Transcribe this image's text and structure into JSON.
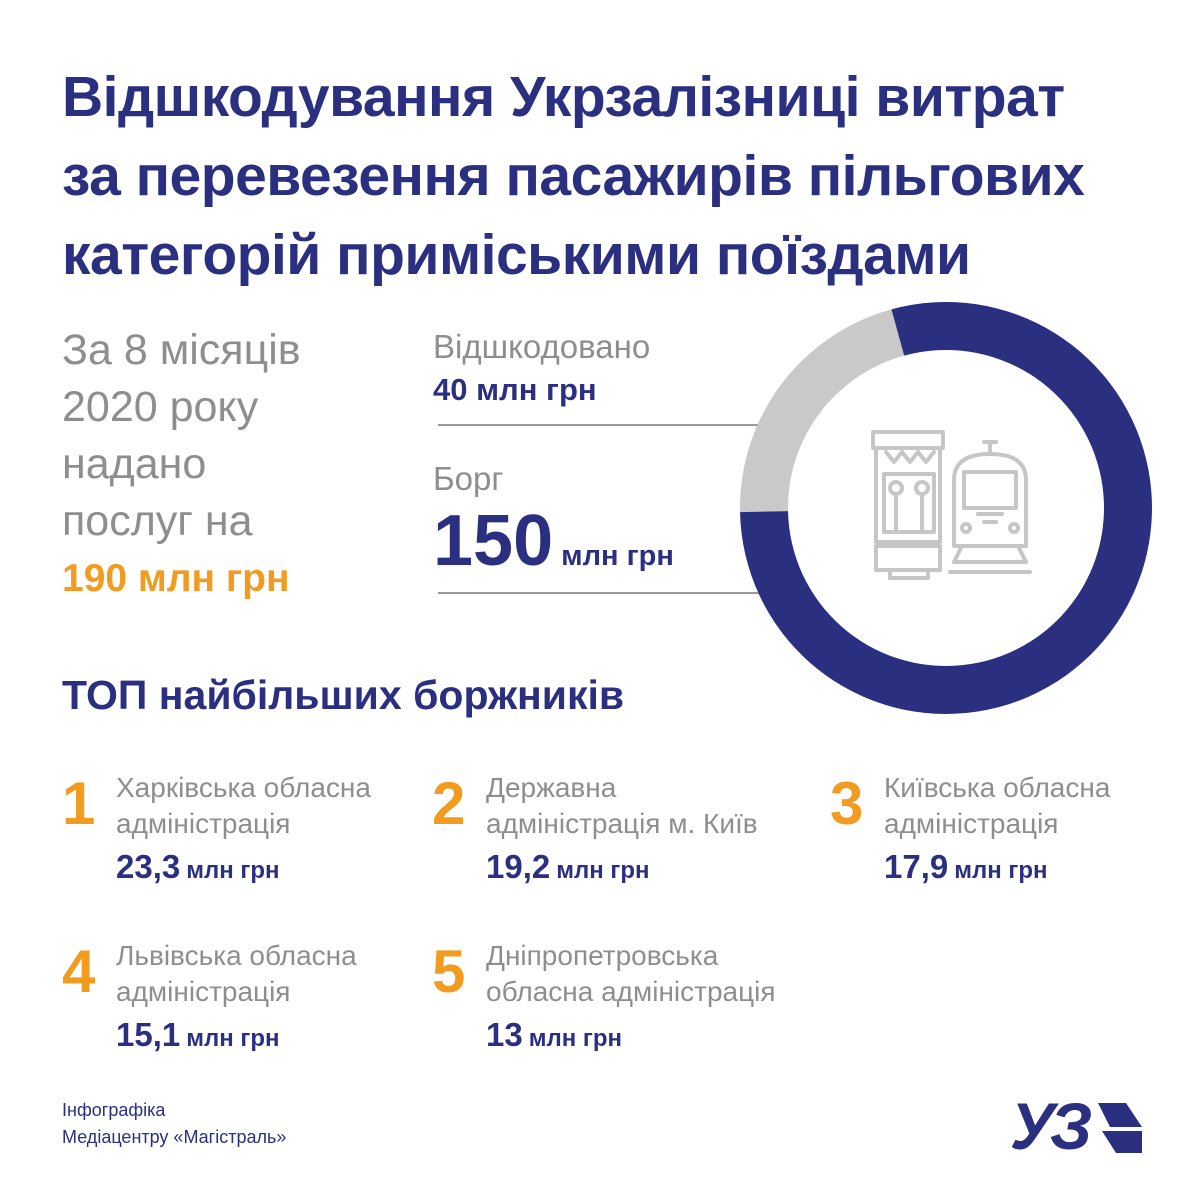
{
  "title": {
    "lines": [
      "Відшкодування Укрзалізниці витрат",
      "за перевезення пасажирів пільгових",
      "категорій приміськими поїздами"
    ]
  },
  "intro": {
    "lines": [
      "За 8 місяців",
      "2020 року",
      "надано",
      "послуг на"
    ],
    "amount": "190 млн грн"
  },
  "stats": {
    "compensated_label": "Відшкодовано",
    "compensated_value": "40 млн грн",
    "debt_label": "Борг",
    "debt_value": "150",
    "debt_unit": "млн грн"
  },
  "chart_data": {
    "type": "pie",
    "categories": [
      "Відшкодовано",
      "Борг"
    ],
    "values": [
      40,
      150
    ],
    "unit": "млн грн",
    "colors": [
      "#c9c9c9",
      "#2b2f7f"
    ],
    "style": "donut",
    "center_icon": "suburban-train-icon"
  },
  "top": {
    "title": "ТОП найбільших боржників",
    "debtors": [
      {
        "rank": "1",
        "name_lines": [
          "Харківська обласна",
          "адміністрація"
        ],
        "amount": "23,3",
        "unit": "млн грн"
      },
      {
        "rank": "2",
        "name_lines": [
          "Державна",
          "адміністрація м. Київ"
        ],
        "amount": "19,2",
        "unit": "млн грн"
      },
      {
        "rank": "3",
        "name_lines": [
          "Київська обласна",
          "адміністрація"
        ],
        "amount": "17,9",
        "unit": "млн грн"
      },
      {
        "rank": "4",
        "name_lines": [
          "Львівська обласна",
          "адміністрація"
        ],
        "amount": "15,1",
        "unit": "млн грн"
      },
      {
        "rank": "5",
        "name_lines": [
          "Дніпропетровська",
          "обласна адміністрація"
        ],
        "amount": "13",
        "unit": "млн грн"
      }
    ]
  },
  "credit": {
    "lines": [
      "Інфографіка",
      "Медіацентру «Магістраль»"
    ]
  },
  "logo": {
    "text": "УЗ",
    "icon": "uz-logo-icon"
  }
}
